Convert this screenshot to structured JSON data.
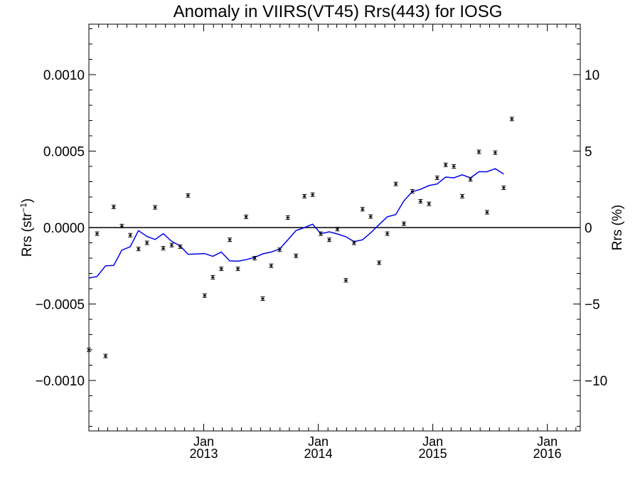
{
  "chart_data": {
    "type": "scatter",
    "title": "Anomaly in VIIRS(VT45) Rrs(443) for IOSG",
    "ylabel_left": {
      "base": "Rrs (str",
      "sup": "−1",
      "tail": ")"
    },
    "ylabel_right": "Rrs (%)",
    "x_axis": {
      "type": "date",
      "range": [
        "2012-01-01",
        "2016-04-15"
      ],
      "major_ticks": [
        {
          "x": "2013-01-01",
          "label_month": "Jan",
          "label_year": "2013"
        },
        {
          "x": "2014-01-01",
          "label_month": "Jan",
          "label_year": "2014"
        },
        {
          "x": "2015-01-01",
          "label_month": "Jan",
          "label_year": "2015"
        },
        {
          "x": "2016-01-01",
          "label_month": "Jan",
          "label_year": "2016"
        }
      ]
    },
    "y_left": {
      "range": [
        -0.00133,
        0.00133
      ],
      "ticks": [
        {
          "v": 0.001,
          "label": "0.0010"
        },
        {
          "v": 0.0005,
          "label": "0.0005"
        },
        {
          "v": 0.0,
          "label": "0.0000"
        },
        {
          "v": -0.0005,
          "label": "−0.0005"
        },
        {
          "v": -0.001,
          "label": "−0.0010"
        }
      ]
    },
    "y_right": {
      "range": [
        -13.3,
        13.3
      ],
      "ticks": [
        {
          "v": 10,
          "label": "10"
        },
        {
          "v": 5,
          "label": "5"
        },
        {
          "v": 0,
          "label": "0"
        },
        {
          "v": -5,
          "label": "−5"
        },
        {
          "v": -10,
          "label": "−10"
        }
      ]
    },
    "zero_line": 0.0,
    "series": [
      {
        "kind": "points_with_errorbars",
        "color": "#000000",
        "error": 4e-06,
        "points": [
          {
            "x": "2012-01-01",
            "y": -0.0008
          },
          {
            "x": "2012-01-27",
            "y": -4e-05
          },
          {
            "x": "2012-02-23",
            "y": -0.00084
          },
          {
            "x": "2012-03-20",
            "y": 0.000135
          },
          {
            "x": "2012-04-15",
            "y": 1e-05
          },
          {
            "x": "2012-05-12",
            "y": -5e-05
          },
          {
            "x": "2012-06-07",
            "y": -0.00014
          },
          {
            "x": "2012-07-04",
            "y": -0.0001
          },
          {
            "x": "2012-07-30",
            "y": 0.000132
          },
          {
            "x": "2012-08-25",
            "y": -0.000135
          },
          {
            "x": "2012-09-21",
            "y": -0.000115
          },
          {
            "x": "2012-10-18",
            "y": -0.000125
          },
          {
            "x": "2012-11-12",
            "y": 0.00021
          },
          {
            "x": "2013-01-04",
            "y": -0.000445
          },
          {
            "x": "2013-01-30",
            "y": -0.000325
          },
          {
            "x": "2013-02-26",
            "y": -0.00027
          },
          {
            "x": "2013-03-25",
            "y": -8e-05
          },
          {
            "x": "2013-04-20",
            "y": -0.00027
          },
          {
            "x": "2013-05-16",
            "y": 7e-05
          },
          {
            "x": "2013-06-12",
            "y": -0.0002
          },
          {
            "x": "2013-07-08",
            "y": -0.000465
          },
          {
            "x": "2013-08-04",
            "y": -0.00025
          },
          {
            "x": "2013-08-31",
            "y": -0.000145
          },
          {
            "x": "2013-09-26",
            "y": 6.5e-05
          },
          {
            "x": "2013-10-22",
            "y": -0.000185
          },
          {
            "x": "2013-11-18",
            "y": 0.000205
          },
          {
            "x": "2013-12-14",
            "y": 0.000215
          },
          {
            "x": "2014-01-09",
            "y": -4e-05
          },
          {
            "x": "2014-02-05",
            "y": -8e-05
          },
          {
            "x": "2014-03-03",
            "y": -1e-05
          },
          {
            "x": "2014-03-30",
            "y": -0.000345
          },
          {
            "x": "2014-04-25",
            "y": -0.0001
          },
          {
            "x": "2014-05-22",
            "y": 0.00012
          },
          {
            "x": "2014-06-17",
            "y": 7.2e-05
          },
          {
            "x": "2014-07-14",
            "y": -0.00023
          },
          {
            "x": "2014-08-09",
            "y": -4e-05
          },
          {
            "x": "2014-09-05",
            "y": 0.000285
          },
          {
            "x": "2014-10-01",
            "y": 2.5e-05
          },
          {
            "x": "2014-10-28",
            "y": 0.000237
          },
          {
            "x": "2014-11-23",
            "y": 0.000172
          },
          {
            "x": "2014-12-20",
            "y": 0.000155
          },
          {
            "x": "2015-01-15",
            "y": 0.000325
          },
          {
            "x": "2015-02-11",
            "y": 0.00041
          },
          {
            "x": "2015-03-09",
            "y": 0.0004
          },
          {
            "x": "2015-04-05",
            "y": 0.000205
          },
          {
            "x": "2015-05-01",
            "y": 0.000315
          },
          {
            "x": "2015-05-28",
            "y": 0.000495
          },
          {
            "x": "2015-06-23",
            "y": 0.0001
          },
          {
            "x": "2015-07-19",
            "y": 0.00049
          },
          {
            "x": "2015-08-15",
            "y": 0.00026
          },
          {
            "x": "2015-09-10",
            "y": 0.00071
          }
        ]
      },
      {
        "kind": "line",
        "color": "#0000ee",
        "points": [
          {
            "x": "2012-01-01",
            "y": -0.00033
          },
          {
            "x": "2012-01-27",
            "y": -0.00032
          },
          {
            "x": "2012-02-23",
            "y": -0.00025
          },
          {
            "x": "2012-03-20",
            "y": -0.000248
          },
          {
            "x": "2012-04-15",
            "y": -0.000148
          },
          {
            "x": "2012-05-12",
            "y": -0.000125
          },
          {
            "x": "2012-06-07",
            "y": -2e-05
          },
          {
            "x": "2012-07-04",
            "y": -5.8e-05
          },
          {
            "x": "2012-07-30",
            "y": -7.8e-05
          },
          {
            "x": "2012-08-25",
            "y": -4e-05
          },
          {
            "x": "2012-09-21",
            "y": -9e-05
          },
          {
            "x": "2012-10-18",
            "y": -0.00012
          },
          {
            "x": "2012-11-12",
            "y": -0.000175
          },
          {
            "x": "2013-01-04",
            "y": -0.00017
          },
          {
            "x": "2013-01-30",
            "y": -0.000188
          },
          {
            "x": "2013-02-26",
            "y": -0.00016
          },
          {
            "x": "2013-03-25",
            "y": -0.000218
          },
          {
            "x": "2013-04-20",
            "y": -0.00022
          },
          {
            "x": "2013-05-16",
            "y": -0.00021
          },
          {
            "x": "2013-06-12",
            "y": -0.000195
          },
          {
            "x": "2013-07-08",
            "y": -0.000172
          },
          {
            "x": "2013-08-04",
            "y": -0.00016
          },
          {
            "x": "2013-08-31",
            "y": -0.00014
          },
          {
            "x": "2013-09-26",
            "y": -8e-05
          },
          {
            "x": "2013-10-22",
            "y": -2e-05
          },
          {
            "x": "2013-11-18",
            "y": 0.0
          },
          {
            "x": "2013-12-14",
            "y": 2.2e-05
          },
          {
            "x": "2014-01-09",
            "y": -4e-05
          },
          {
            "x": "2014-02-05",
            "y": -2.8e-05
          },
          {
            "x": "2014-03-03",
            "y": -4.2e-05
          },
          {
            "x": "2014-03-30",
            "y": -6e-05
          },
          {
            "x": "2014-04-25",
            "y": -9.2e-05
          },
          {
            "x": "2014-05-22",
            "y": -8e-05
          },
          {
            "x": "2014-06-17",
            "y": -3.5e-05
          },
          {
            "x": "2014-07-14",
            "y": 2e-05
          },
          {
            "x": "2014-08-09",
            "y": 7e-05
          },
          {
            "x": "2014-09-05",
            "y": 8.5e-05
          },
          {
            "x": "2014-10-01",
            "y": 0.000175
          },
          {
            "x": "2014-10-28",
            "y": 0.000235
          },
          {
            "x": "2014-11-23",
            "y": 0.00025
          },
          {
            "x": "2014-12-20",
            "y": 0.000275
          },
          {
            "x": "2015-01-15",
            "y": 0.000285
          },
          {
            "x": "2015-02-11",
            "y": 0.00033
          },
          {
            "x": "2015-03-09",
            "y": 0.000325
          },
          {
            "x": "2015-04-05",
            "y": 0.000345
          },
          {
            "x": "2015-05-01",
            "y": 0.000325
          },
          {
            "x": "2015-05-28",
            "y": 0.000365
          },
          {
            "x": "2015-06-23",
            "y": 0.000365
          },
          {
            "x": "2015-07-19",
            "y": 0.000385
          },
          {
            "x": "2015-08-15",
            "y": 0.00035
          }
        ]
      }
    ]
  }
}
